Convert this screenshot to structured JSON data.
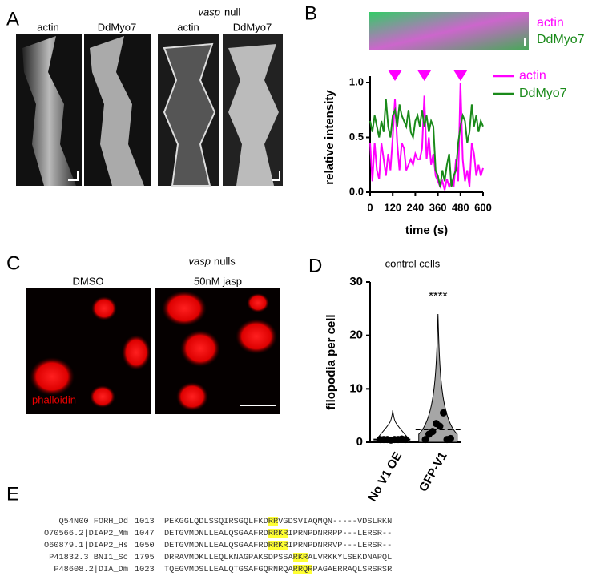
{
  "panels": {
    "A": {
      "letter": "A",
      "label_actin_1": "actin",
      "label_myo_1": "DdMyo7",
      "italic": "vasp",
      "null_text": "null",
      "label_actin_2": "actin",
      "label_myo_2": "DdMyo7"
    },
    "B": {
      "letter": "B",
      "kymo_actin": "actin",
      "kymo_myo": "DdMyo7"
    },
    "C": {
      "letter": "C",
      "italic": "vasp",
      "nulls_text": "nulls",
      "label_dmso": "DMSO",
      "label_jasp": "50nM jasp",
      "stain": "phalloidin"
    },
    "D": {
      "letter": "D"
    },
    "E": {
      "letter": "E",
      "rows": [
        {
          "id": "Q54N00|FORH_Dd",
          "start": 1013,
          "pre": "PEKGGLQDLSSQIRSGQLFKD",
          "hl": "RR",
          "post": "VGDSVIAQMQN-----VDSLRKN"
        },
        {
          "id": "O70566.2|DIAP2_Mm",
          "start": 1047,
          "pre": "DETGVMDNLLEALQSGAAFRD",
          "hl": "RRKR",
          "post": "IPRNPDNRRPP---LERSR--"
        },
        {
          "id": "O60879.1|DIAP2_Hs",
          "start": 1050,
          "pre": "DETGVMDNLLEALQSGAAFRD",
          "hl": "RRKR",
          "post": "IPRNPDNRRVP---LERSR--"
        },
        {
          "id": "P41832.3|BNI1_Sc",
          "start": 1795,
          "pre": "DRRAVMDKLLEQLKNAGPAKSDPSSA",
          "hl": "RKR",
          "post": "ALVRKKYLSEKDNAPQL"
        },
        {
          "id": "P48608.2|DIA_Dm",
          "start": 1023,
          "pre": "TQEGVMDSLLEALQTGSAFGQRNRQA",
          "hl": "RRQR",
          "post": "PAGAERRAQLSRSRSR"
        }
      ]
    }
  },
  "chart_data": [
    {
      "type": "line",
      "xlabel": "time (s)",
      "ylabel": "relative intensity",
      "x": [
        0,
        12,
        24,
        36,
        48,
        60,
        72,
        84,
        96,
        108,
        120,
        132,
        144,
        156,
        168,
        180,
        192,
        204,
        216,
        228,
        240,
        252,
        264,
        276,
        288,
        300,
        312,
        324,
        336,
        348,
        360,
        372,
        384,
        396,
        408,
        420,
        432,
        444,
        456,
        468,
        480,
        492,
        504,
        516,
        528,
        540,
        552,
        564,
        576,
        588,
        600
      ],
      "series": [
        {
          "name": "actin",
          "color": "#ff00ff",
          "values": [
            0.45,
            0.1,
            0.45,
            0.2,
            0.12,
            0.45,
            0.3,
            0.15,
            0.35,
            0.2,
            0.5,
            0.85,
            0.45,
            0.2,
            0.45,
            0.4,
            0.2,
            0.25,
            0.3,
            0.25,
            0.35,
            0.3,
            0.3,
            0.4,
            0.88,
            0.3,
            0.5,
            0.25,
            0.35,
            0.15,
            0.1,
            0.05,
            0.1,
            0.02,
            0.12,
            0.05,
            0.1,
            0.05,
            0.3,
            0.1,
            1.0,
            0.3,
            0.1,
            0.2,
            0.05,
            0.45,
            0.35,
            0.15,
            0.25,
            0.15,
            0.22
          ]
        },
        {
          "name": "DdMyo7",
          "color": "#1a8a1a",
          "values": [
            0.65,
            0.55,
            0.7,
            0.6,
            0.5,
            0.65,
            0.55,
            0.85,
            0.6,
            0.5,
            0.7,
            0.75,
            0.6,
            0.8,
            0.7,
            0.65,
            0.6,
            0.75,
            0.55,
            0.5,
            0.65,
            0.7,
            0.6,
            0.75,
            0.6,
            0.7,
            0.55,
            0.65,
            0.6,
            0.2,
            0.15,
            0.05,
            0.2,
            0.1,
            0.25,
            0.35,
            0.05,
            0.15,
            0.2,
            0.45,
            0.6,
            0.7,
            0.65,
            0.45,
            0.55,
            0.8,
            0.6,
            0.7,
            0.55,
            0.65,
            0.6
          ]
        }
      ],
      "markers_x": [
        132,
        288,
        480
      ],
      "marker_color": "#ff00ff",
      "xlim": [
        0,
        600
      ],
      "xticks": [
        0,
        120,
        240,
        360,
        480,
        600
      ],
      "ylim": [
        0,
        1
      ],
      "yticks": [
        {
          "value": 0,
          "label": "0.0"
        },
        {
          "value": 0.5,
          "label": "0.5"
        },
        {
          "value": 1,
          "label": "1.0"
        }
      ]
    },
    {
      "type": "violin",
      "title": "control cells",
      "ylabel": "filopodia per cell",
      "annotation": "****",
      "categories": [
        "No V1 OE",
        "GFP-V1"
      ],
      "values": [
        [
          0.5,
          0.5,
          0.5,
          0.4,
          0.5,
          0.5,
          0.6,
          0.5
        ],
        [
          0.5,
          1.5,
          2,
          3.5,
          3,
          5.5,
          0.5,
          0.7
        ]
      ],
      "max": [
        6,
        24
      ],
      "mean": [
        0.5,
        2.4
      ],
      "color": "#a6a6a6",
      "ylim": [
        0,
        30
      ],
      "yticks": [
        0,
        10,
        20,
        30
      ]
    }
  ]
}
